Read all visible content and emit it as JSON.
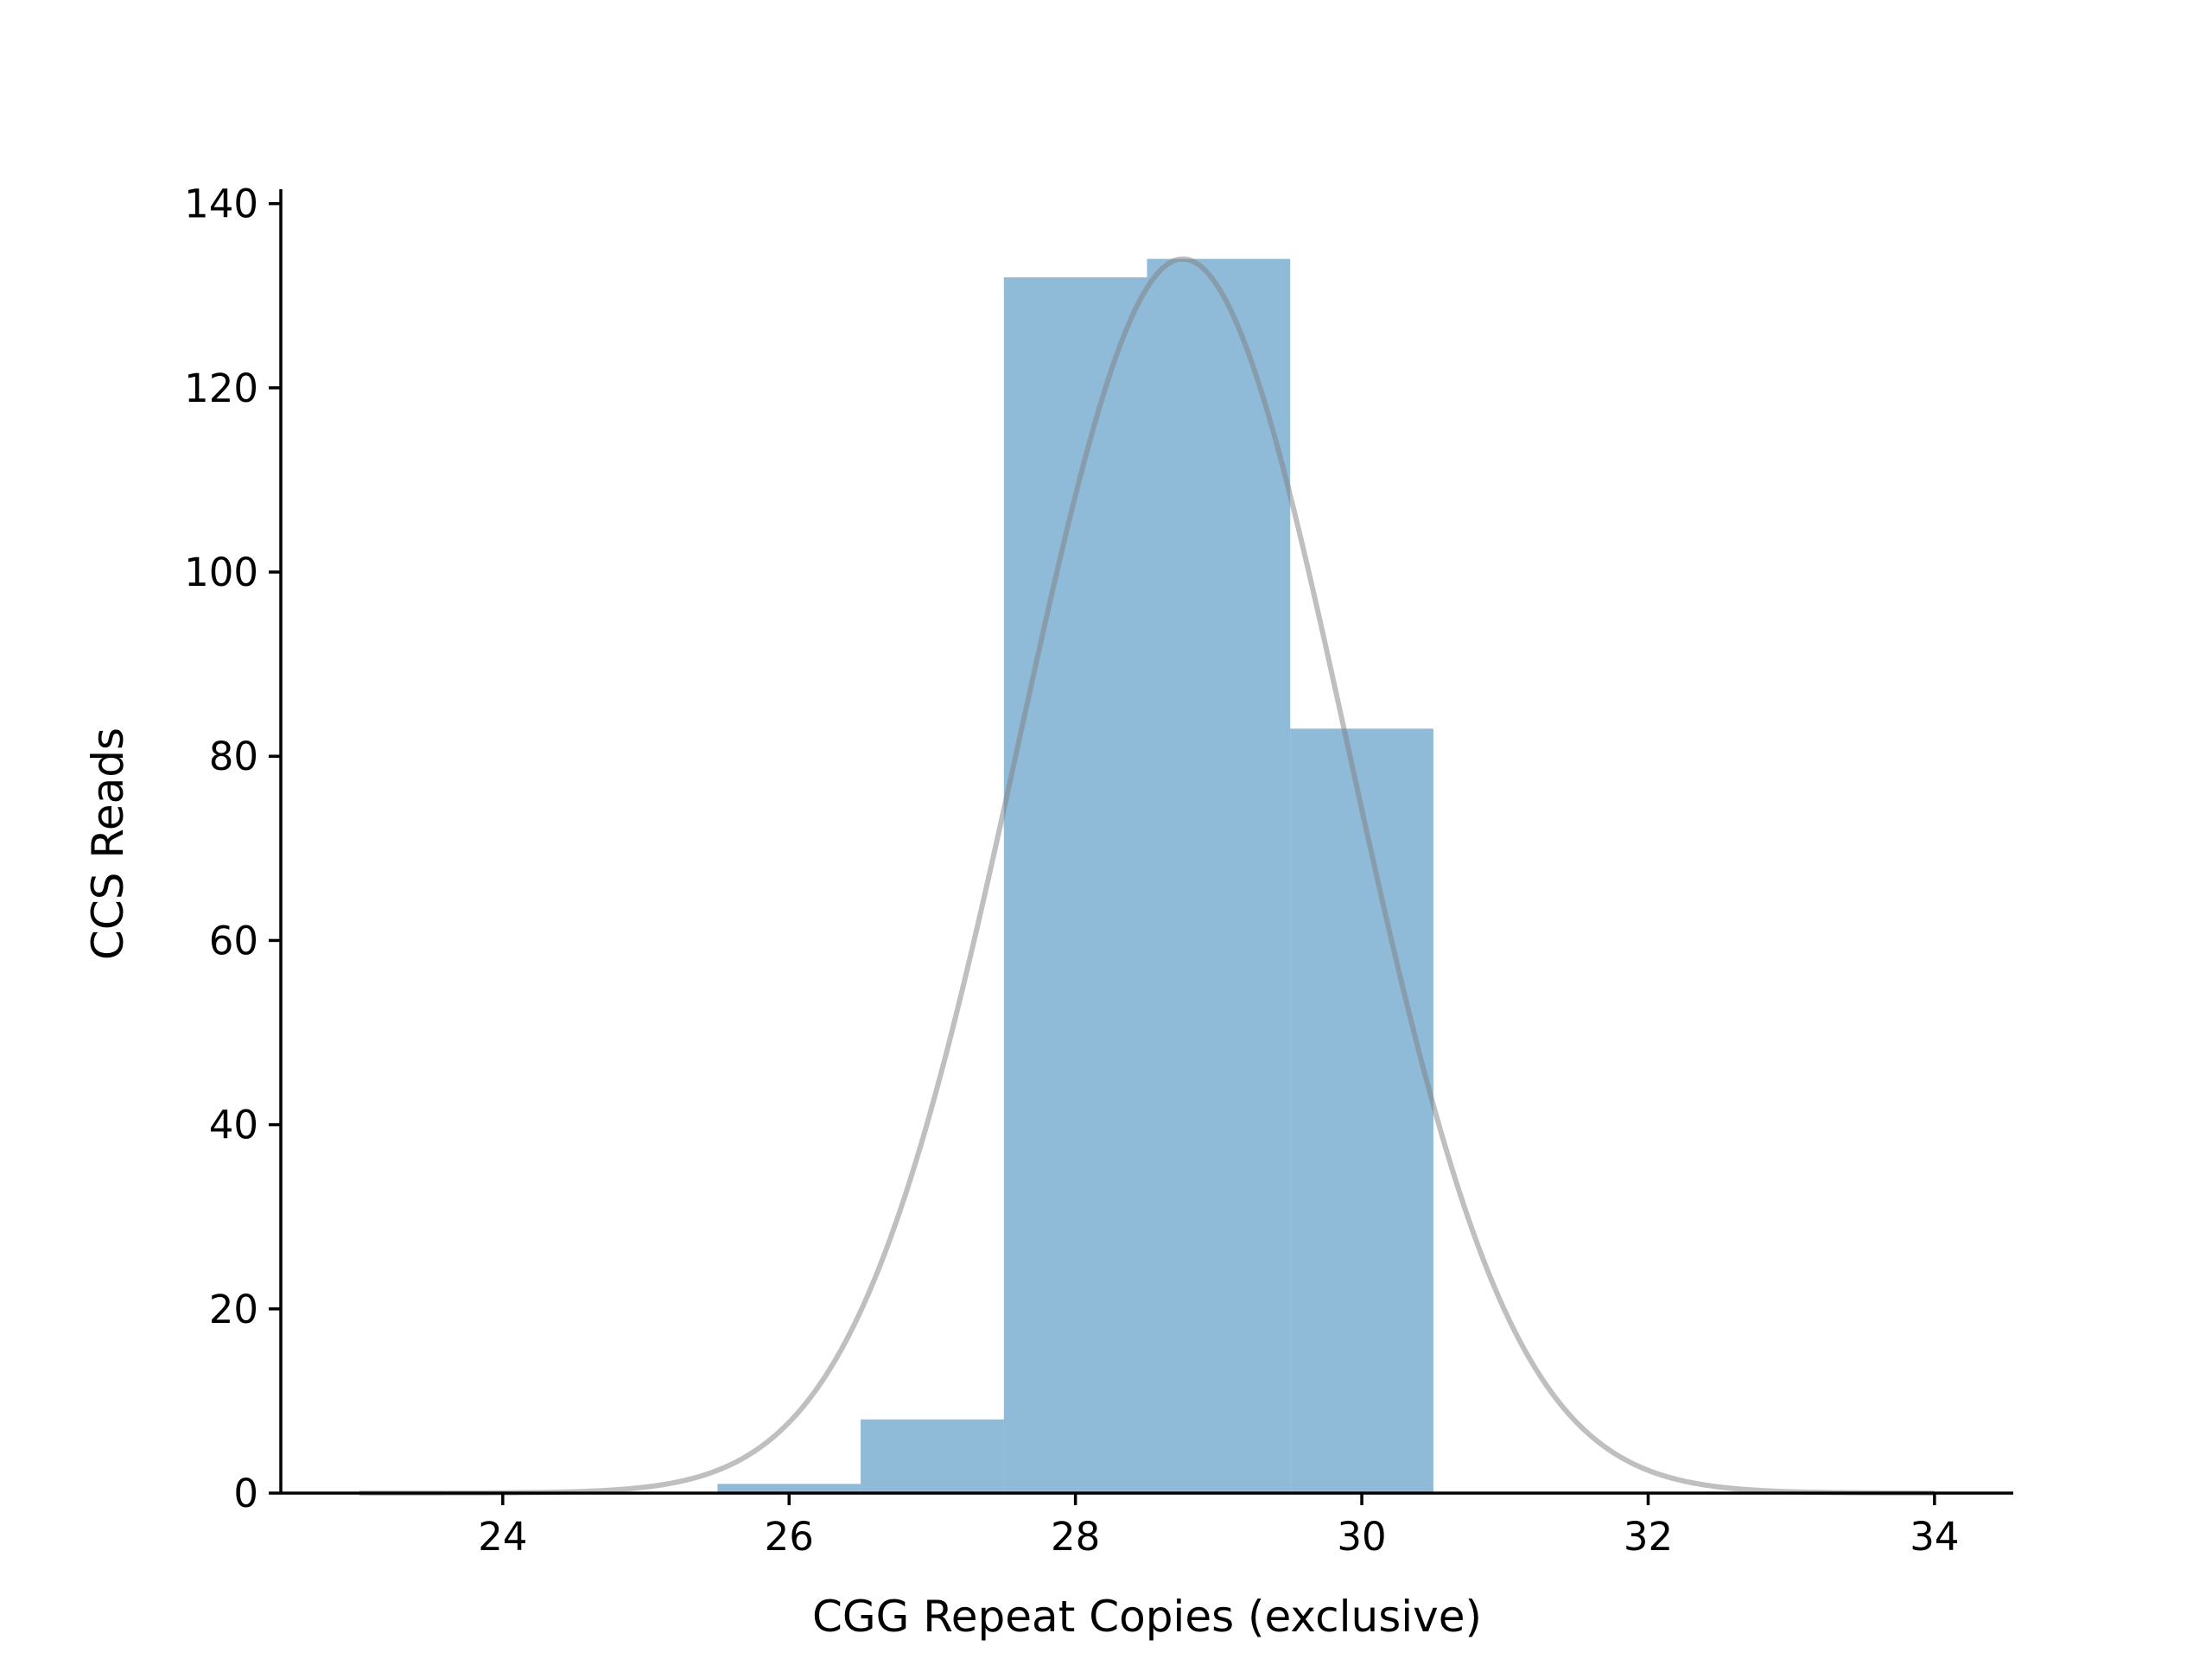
{
  "chart_data": {
    "type": "bar",
    "xlabel": "CGG Repeat Copies (exclusive)",
    "ylabel": "CCS Reads",
    "xlim": [
      22.45,
      34.55
    ],
    "ylim": [
      0,
      141
    ],
    "xticks": [
      24,
      26,
      28,
      30,
      32,
      34
    ],
    "yticks": [
      0,
      20,
      40,
      60,
      80,
      100,
      120,
      140
    ],
    "bins": [
      {
        "left": 25.5,
        "right": 26.5,
        "value": 1
      },
      {
        "left": 26.5,
        "right": 27.5,
        "value": 8
      },
      {
        "left": 27.5,
        "right": 28.5,
        "value": 132
      },
      {
        "left": 28.5,
        "right": 29.5,
        "value": 134
      },
      {
        "left": 29.5,
        "right": 30.5,
        "value": 83
      }
    ],
    "fit_curve": {
      "type": "gaussian",
      "mean": 28.75,
      "sd": 1.15,
      "peak": 134,
      "x_range": [
        23,
        34
      ]
    },
    "bar_color": "#1f77b4",
    "bar_opacity": 0.5,
    "curve_color": "#808080",
    "curve_opacity": 0.5,
    "grid": false,
    "legend": "none"
  }
}
